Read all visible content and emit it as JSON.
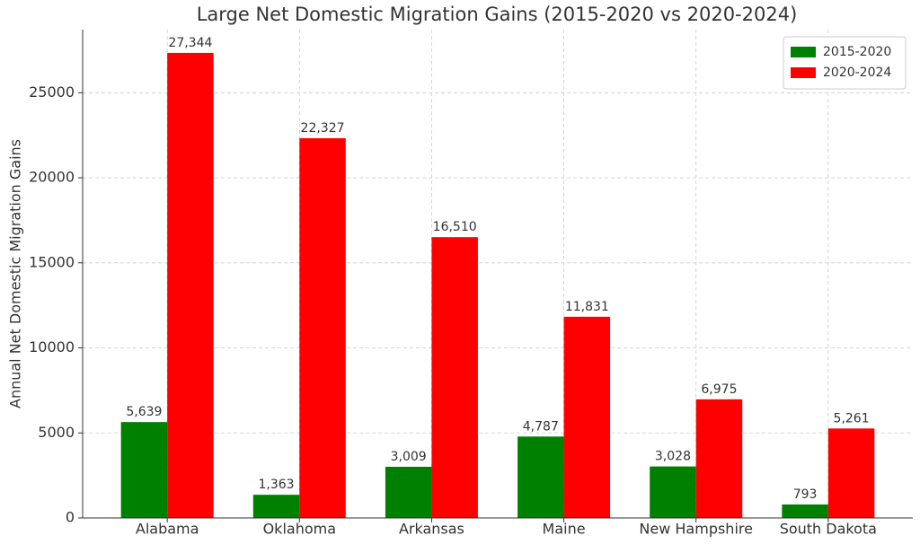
{
  "chart_data": {
    "type": "bar",
    "title": "Large Net Domestic Migration Gains (2015-2020 vs 2020-2024)",
    "y_label": "Annual Net Domestic Migration Gains",
    "categories": [
      "Alabama",
      "Oklahoma",
      "Arkansas",
      "Maine",
      "New Hampshire",
      "South Dakota"
    ],
    "series": [
      {
        "name": "2015-2020",
        "color": "#008000",
        "values": [
          5639,
          1363,
          3009,
          4787,
          3028,
          793
        ],
        "value_labels": [
          "5,639",
          "1,363",
          "3,009",
          "4,787",
          "3,028",
          "793"
        ]
      },
      {
        "name": "2020-2024",
        "color": "#ff0000",
        "values": [
          27344,
          22327,
          16510,
          11831,
          6975,
          5261
        ],
        "value_labels": [
          "27,344",
          "22,327",
          "16,510",
          "11,831",
          "6,975",
          "5,261"
        ]
      }
    ],
    "ylim": [
      0,
      28711
    ],
    "yticks": [
      0,
      5000,
      10000,
      15000,
      20000,
      25000
    ],
    "grid": true,
    "legend": "upper right"
  }
}
